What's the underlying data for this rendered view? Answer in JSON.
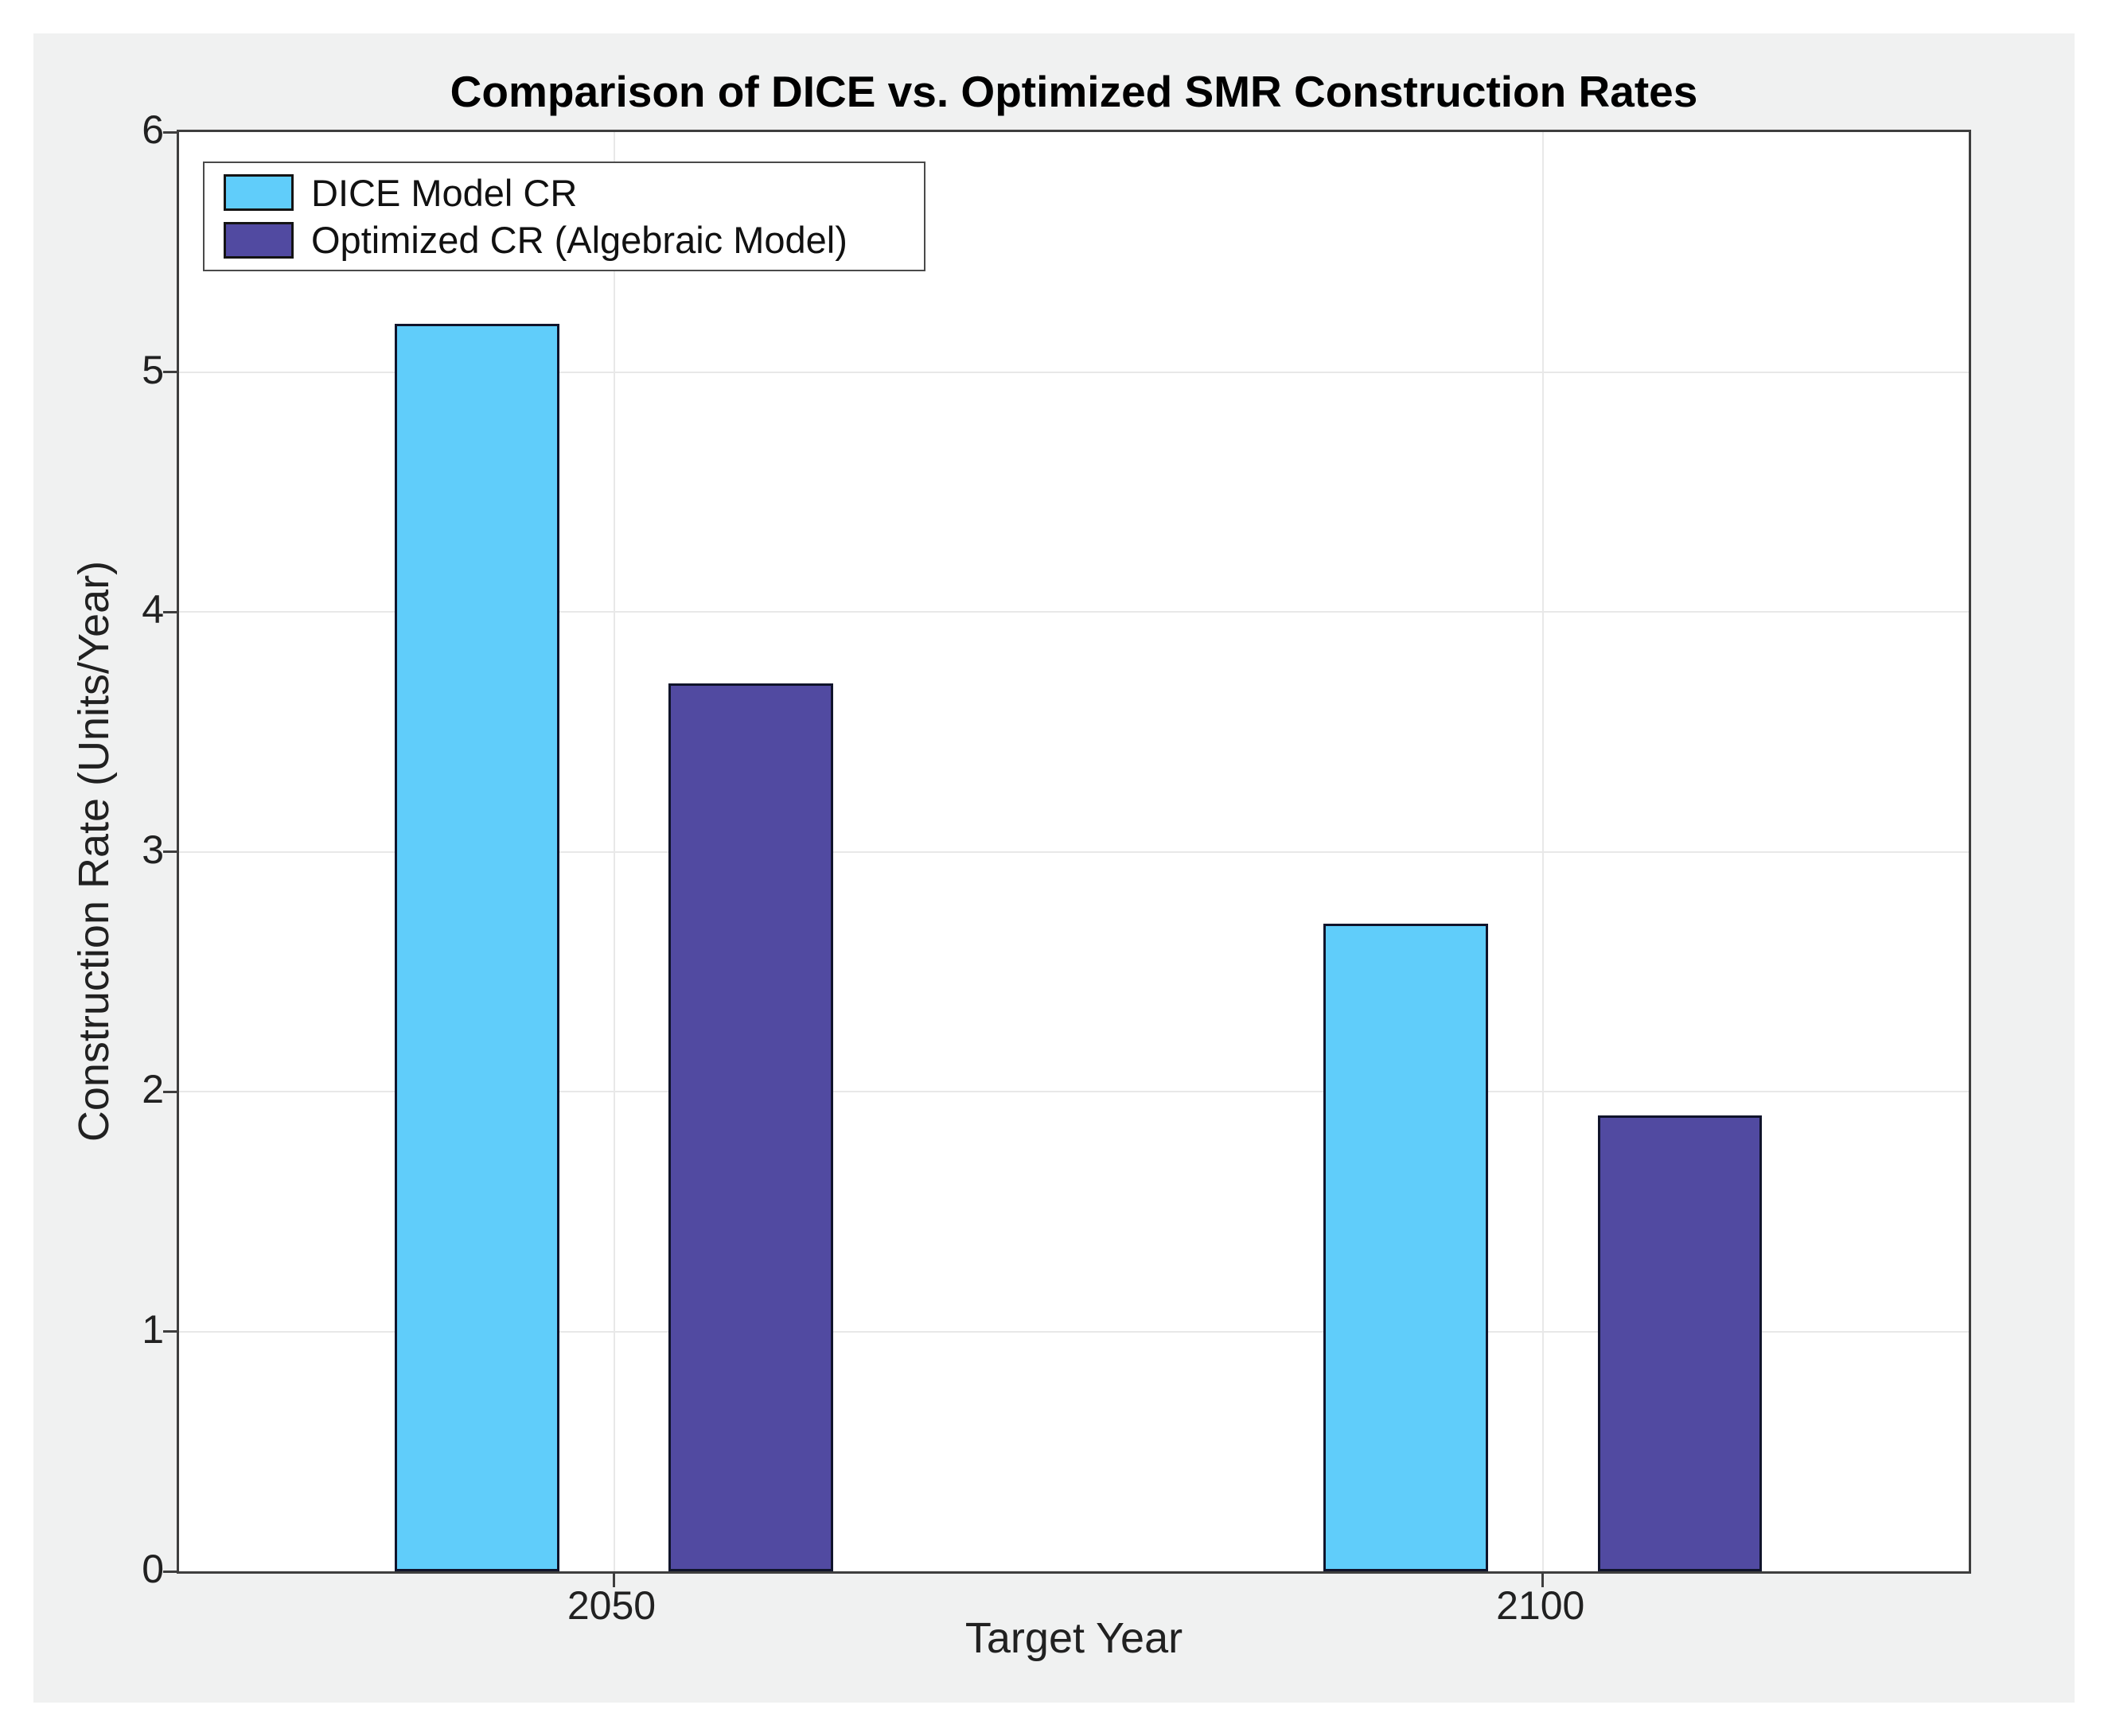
{
  "chart_data": {
    "type": "bar",
    "title": "Comparison of DICE vs. Optimized SMR Construction Rates",
    "xlabel": "Target Year",
    "ylabel": "Construction Rate (Units/Year)",
    "categories": [
      "2050",
      "2100"
    ],
    "series": [
      {
        "name": "DICE Model CR",
        "color": "#60CDFA",
        "values": [
          5.2,
          2.7
        ]
      },
      {
        "name": "Optimized CR (Algebraic Model)",
        "color": "#514AA1",
        "values": [
          3.7,
          1.9
        ]
      }
    ],
    "ylim": [
      0,
      6
    ],
    "yticks": [
      0,
      1,
      2,
      3,
      4,
      5,
      6
    ],
    "grid": true,
    "legend_position": "top-left",
    "bar_edge_color": "#10142B",
    "x_centers_pct": [
      24.3,
      76.2
    ],
    "bar_width_pct": 9.18,
    "bar_gap_pct": 6.12,
    "colors": {
      "figure_bg": "#F0F1F1",
      "plot_bg": "#FFFFFF",
      "axis": "#3E3E3E",
      "grid": "#E8E8E8",
      "text": "#212121"
    }
  }
}
